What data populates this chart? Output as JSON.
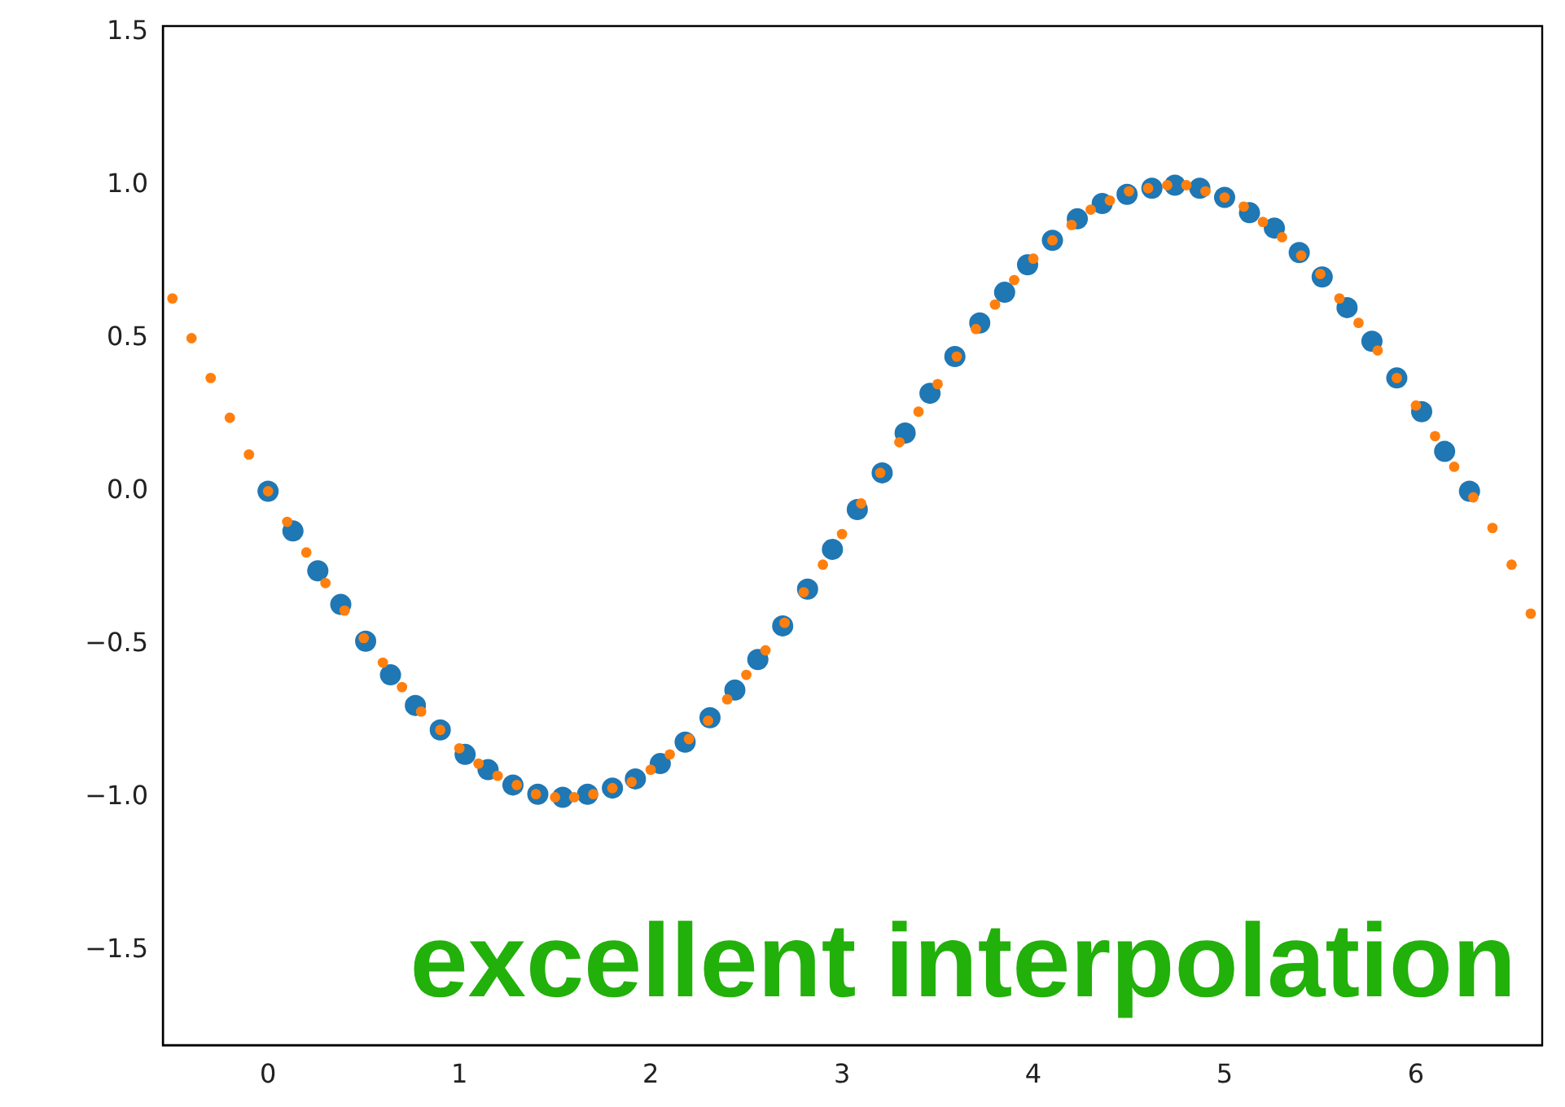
{
  "chart_data": {
    "type": "scatter",
    "marker": "circle",
    "xlim": [
      -0.55,
      6.66
    ],
    "ylim": [
      -1.81,
      1.52
    ],
    "xticks": [
      0,
      1,
      2,
      3,
      4,
      5,
      6
    ],
    "yticks": [
      {
        "value": -1.5,
        "label": "−1.5"
      },
      {
        "value": -1,
        "label": "−1.0"
      },
      {
        "value": -0.5,
        "label": "−0.5"
      },
      {
        "value": 0,
        "label": "0.0"
      },
      {
        "value": 0.5,
        "label": "0.5"
      },
      {
        "value": 1,
        "label": "1.0"
      },
      {
        "value": 1.5,
        "label": "1.5"
      }
    ],
    "annotations": [
      "excellent interpolation"
    ],
    "series": [
      {
        "color": "#1f77b4",
        "x": [
          0,
          0.13,
          0.26,
          0.38,
          0.51,
          0.64,
          0.77,
          0.9,
          1.03,
          1.15,
          1.28,
          1.41,
          1.54,
          1.67,
          1.8,
          1.92,
          2.05,
          2.18,
          2.31,
          2.44,
          2.56,
          2.69,
          2.82,
          2.95,
          3.08,
          3.21,
          3.33,
          3.46,
          3.59,
          3.72,
          3.85,
          3.97,
          4.1,
          4.23,
          4.36,
          4.49,
          4.62,
          4.74,
          4.87,
          5,
          5.13,
          5.26,
          5.39,
          5.51,
          5.64,
          5.77,
          5.9,
          6.03,
          6.15,
          6.28
        ],
        "values": [
          0,
          -0.13,
          -0.26,
          -0.37,
          -0.49,
          -0.6,
          -0.7,
          -0.78,
          -0.86,
          -0.91,
          -0.96,
          -0.99,
          -1,
          -0.99,
          -0.97,
          -0.94,
          -0.89,
          -0.82,
          -0.74,
          -0.65,
          -0.55,
          -0.44,
          -0.32,
          -0.19,
          -0.06,
          0.06,
          0.19,
          0.32,
          0.44,
          0.55,
          0.65,
          0.74,
          0.82,
          0.89,
          0.94,
          0.97,
          0.99,
          1,
          0.99,
          0.96,
          0.91,
          0.86,
          0.78,
          0.7,
          0.6,
          0.49,
          0.37,
          0.26,
          0.13,
          0
        ]
      },
      {
        "color": "#ff7f0e",
        "x": [
          -0.5,
          -0.4,
          -0.3,
          -0.2,
          -0.1,
          0,
          0.1,
          0.2,
          0.3,
          0.4,
          0.5,
          0.6,
          0.7,
          0.8,
          0.9,
          1,
          1.1,
          1.2,
          1.3,
          1.4,
          1.5,
          1.6,
          1.7,
          1.8,
          1.9,
          2,
          2.1,
          2.2,
          2.3,
          2.4,
          2.5,
          2.6,
          2.7,
          2.8,
          2.9,
          3,
          3.1,
          3.2,
          3.3,
          3.4,
          3.5,
          3.6,
          3.7,
          3.8,
          3.9,
          4,
          4.1,
          4.2,
          4.3,
          4.4,
          4.5,
          4.6,
          4.7,
          4.8,
          4.9,
          5,
          5.1,
          5.2,
          5.3,
          5.4,
          5.5,
          5.6,
          5.7,
          5.8,
          5.9,
          6,
          6.1,
          6.2,
          6.3,
          6.4,
          6.5,
          6.6
        ],
        "values": [
          0.63,
          0.5,
          0.37,
          0.24,
          0.12,
          0,
          -0.1,
          -0.2,
          -0.3,
          -0.39,
          -0.48,
          -0.56,
          -0.64,
          -0.72,
          -0.78,
          -0.84,
          -0.89,
          -0.93,
          -0.96,
          -0.99,
          -1,
          -1,
          -0.99,
          -0.97,
          -0.95,
          -0.91,
          -0.86,
          -0.81,
          -0.75,
          -0.68,
          -0.6,
          -0.52,
          -0.43,
          -0.33,
          -0.24,
          -0.14,
          -0.04,
          0.06,
          0.16,
          0.26,
          0.35,
          0.44,
          0.53,
          0.61,
          0.69,
          0.76,
          0.82,
          0.87,
          0.92,
          0.95,
          0.98,
          0.99,
          1,
          1,
          0.98,
          0.96,
          0.93,
          0.88,
          0.83,
          0.77,
          0.71,
          0.63,
          0.55,
          0.46,
          0.37,
          0.28,
          0.18,
          0.08,
          -0.02,
          -0.12,
          -0.24,
          -0.4
        ]
      }
    ]
  }
}
